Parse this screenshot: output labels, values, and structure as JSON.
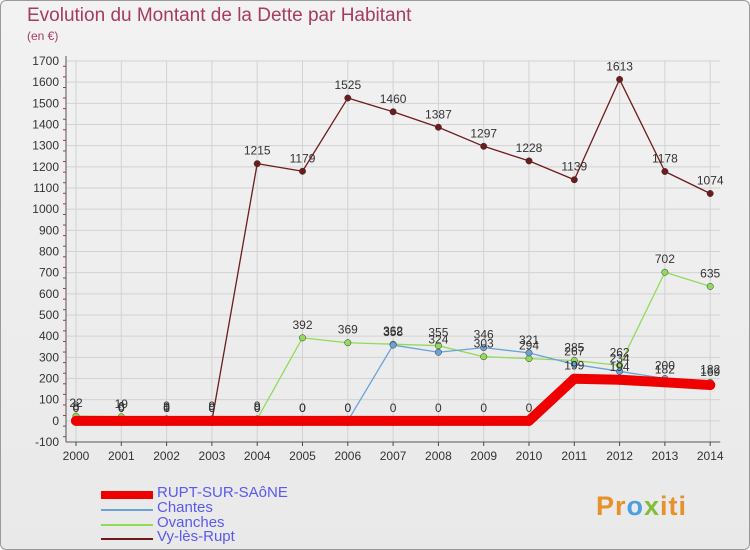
{
  "title": "Evolution du Montant de la Dette par Habitant",
  "subtitle": "(en €)",
  "brand": "Proxiti",
  "chart_data": {
    "type": "line",
    "title": "Evolution du Montant de la Dette par Habitant",
    "ylabel": "(en €)",
    "xlabel": "",
    "categories": [
      "2000",
      "2001",
      "2002",
      "2003",
      "2004",
      "2005",
      "2006",
      "2007",
      "2008",
      "2009",
      "2010",
      "2011",
      "2012",
      "2013",
      "2014"
    ],
    "ylim": [
      -100,
      1700
    ],
    "yticks": [
      -100,
      0,
      100,
      200,
      300,
      400,
      500,
      600,
      700,
      800,
      900,
      1000,
      1100,
      1200,
      1300,
      1400,
      1500,
      1600,
      1700
    ],
    "grid": true,
    "legend_position": "bottom-left",
    "series": [
      {
        "name": "RUPT-SUR-SAôNE",
        "color": "#ee0000",
        "values": [
          0,
          0,
          0,
          0,
          0,
          0,
          0,
          0,
          0,
          0,
          0,
          199,
          194,
          182,
          169
        ],
        "labels": [
          "0",
          "0",
          "0",
          "0",
          "0",
          "0",
          "0",
          "0",
          "0",
          "0",
          "0",
          "199",
          "194",
          "182",
          "169"
        ]
      },
      {
        "name": "Chantes",
        "color": "#6aa3d8",
        "values": [
          0,
          0,
          0,
          0,
          0,
          0,
          0,
          358,
          324,
          346,
          321,
          267,
          234,
          200,
          182
        ],
        "labels": [
          "0",
          "0",
          "0",
          "0",
          "0",
          "0",
          "0",
          "358",
          "324",
          "346",
          "321",
          "267",
          "234",
          "200",
          "182"
        ]
      },
      {
        "name": "Ovanches",
        "color": "#8fdc5a",
        "values": [
          22,
          19,
          9,
          9,
          9,
          392,
          369,
          362,
          355,
          303,
          294,
          285,
          262,
          702,
          635
        ],
        "labels": [
          "22",
          "19",
          "9",
          "9",
          "9",
          "392",
          "369",
          "362",
          "355",
          "303",
          "294",
          "285",
          "262",
          "702",
          "635"
        ]
      },
      {
        "name": "Vy-lès-Rupt",
        "color": "#6e1b1b",
        "values": [
          8,
          6,
          1,
          0,
          1215,
          1179,
          1525,
          1460,
          1387,
          1297,
          1228,
          1139,
          1613,
          1178,
          1074
        ],
        "labels": [
          "8",
          "6",
          "1",
          "0",
          "1215",
          "1179",
          "1525",
          "1460",
          "1387",
          "1297",
          "1228",
          "1139",
          "1613",
          "1178",
          "1074"
        ]
      }
    ]
  }
}
